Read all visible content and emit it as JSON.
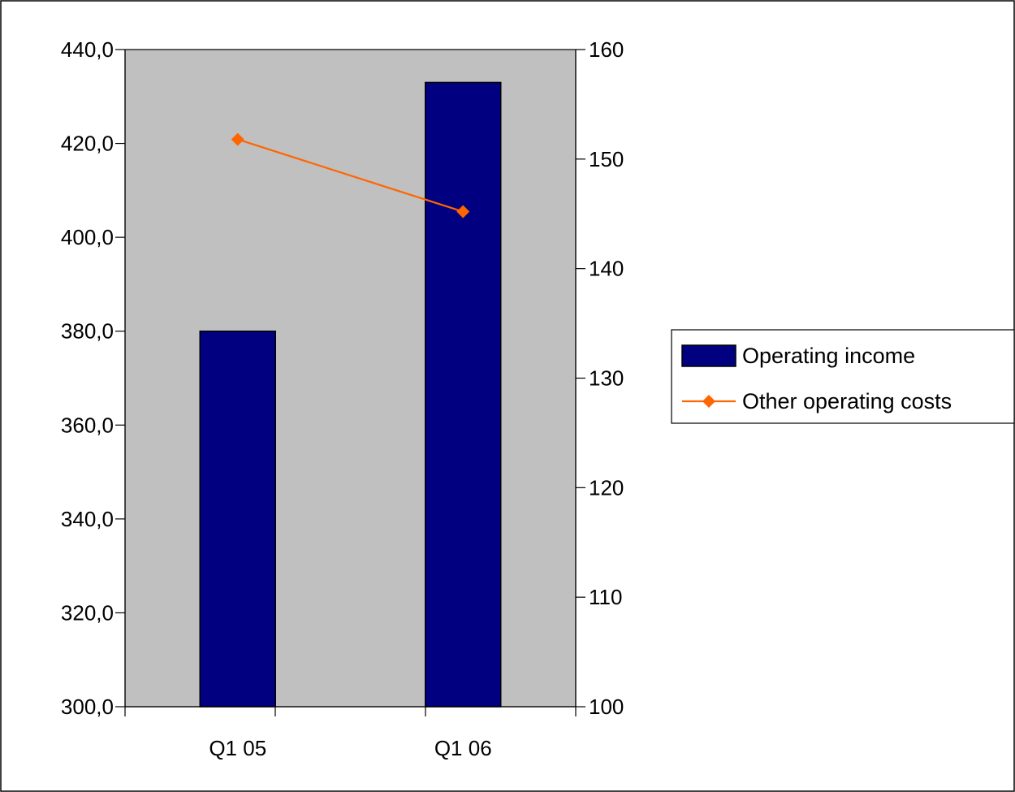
{
  "chart_data": {
    "type": "bar",
    "categories": [
      "Q1 05",
      "Q1 06"
    ],
    "series": [
      {
        "name": "Operating income",
        "type": "bar",
        "axis": "left",
        "values": [
          380.0,
          433.0
        ],
        "color": "#000080"
      },
      {
        "name": "Other operating costs",
        "type": "line",
        "axis": "right",
        "values": [
          151.8,
          145.2
        ],
        "color": "#FF6600",
        "marker": "diamond"
      }
    ],
    "y_left": {
      "range": [
        300,
        440
      ],
      "ticks": [
        "300,0",
        "320,0",
        "340,0",
        "360,0",
        "380,0",
        "400,0",
        "420,0",
        "440,0"
      ]
    },
    "y_right": {
      "range": [
        100,
        160
      ],
      "ticks": [
        "100",
        "110",
        "120",
        "130",
        "140",
        "150",
        "160"
      ]
    },
    "title": "",
    "xlabel": "",
    "ylabel": "",
    "plot_background": "#C0C0C0",
    "grid": false,
    "legend": {
      "position": "right",
      "entries": [
        "Operating income",
        "Other operating costs"
      ]
    }
  }
}
